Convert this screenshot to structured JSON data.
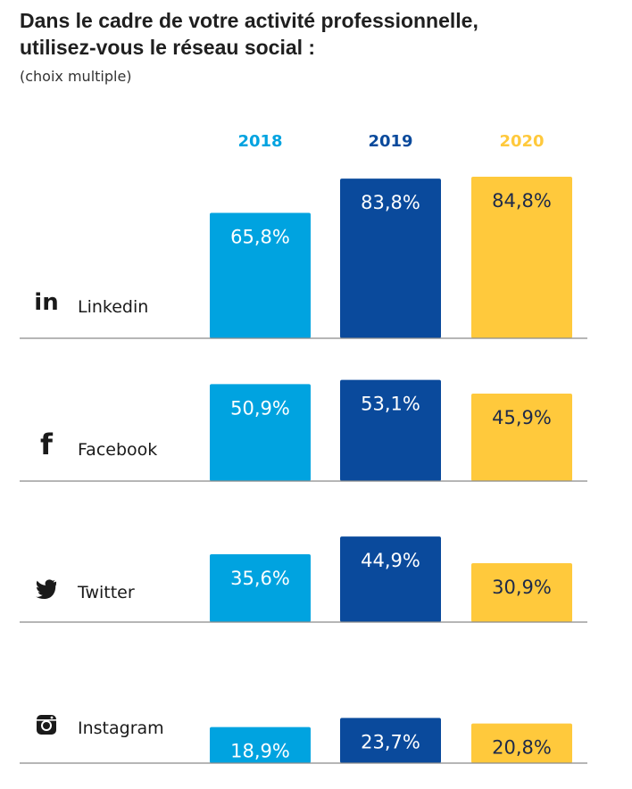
{
  "title_line1": "Dans le cadre de votre activité professionnelle,",
  "title_line2": "utilisez-vous le réseau social :",
  "subtitle": "(choix multiple)",
  "colors": {
    "2018": "#00a3e0",
    "2019": "#0a4a9c",
    "2020": "#ffc93c",
    "axis": "#8a8a8a",
    "icon": "#1a1a1a"
  },
  "chart_data": {
    "type": "bar",
    "years": [
      "2018",
      "2019",
      "2020"
    ],
    "categories": [
      {
        "name": "Linkedin",
        "icon": "linkedin-icon",
        "values": [
          65.8,
          83.8,
          84.8
        ],
        "labels": [
          "65,8%",
          "83,8%",
          "84,8%"
        ]
      },
      {
        "name": "Facebook",
        "icon": "facebook-icon",
        "values": [
          50.9,
          53.1,
          45.9
        ],
        "labels": [
          "50,9%",
          "53,1%",
          "45,9%"
        ]
      },
      {
        "name": "Twitter",
        "icon": "twitter-icon",
        "values": [
          35.6,
          44.9,
          30.9
        ],
        "labels": [
          "35,6%",
          "44,9%",
          "30,9%"
        ]
      },
      {
        "name": "Instagram",
        "icon": "instagram-icon",
        "values": [
          18.9,
          23.7,
          20.8
        ],
        "labels": [
          "18,9%",
          "23,7%",
          "20,8%"
        ]
      }
    ]
  }
}
